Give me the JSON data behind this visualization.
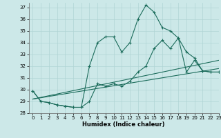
{
  "xlabel": "Humidex (Indice chaleur)",
  "bg_color": "#cce8e8",
  "line_color": "#1a6b5a",
  "grid_color": "#b0d4d4",
  "xlim": [
    -0.5,
    23
  ],
  "ylim": [
    28,
    37.4
  ],
  "yticks": [
    28,
    29,
    30,
    31,
    32,
    33,
    34,
    35,
    36,
    37
  ],
  "xticks": [
    0,
    1,
    2,
    3,
    4,
    5,
    6,
    7,
    8,
    9,
    10,
    11,
    12,
    13,
    14,
    15,
    16,
    17,
    18,
    19,
    20,
    21,
    22,
    23
  ],
  "line1_x": [
    0,
    1,
    2,
    3,
    4,
    5,
    6,
    7,
    8,
    9,
    10,
    11,
    12,
    13,
    14,
    15,
    16,
    17,
    18,
    19,
    20,
    21,
    22,
    23
  ],
  "line1_y": [
    29.9,
    29.0,
    28.9,
    28.7,
    28.6,
    28.5,
    28.5,
    29.0,
    30.5,
    30.3,
    30.5,
    30.3,
    30.7,
    31.5,
    32.0,
    33.5,
    34.2,
    33.5,
    34.4,
    33.2,
    32.7,
    31.6,
    31.5,
    31.5
  ],
  "line2_x": [
    0,
    1,
    2,
    3,
    4,
    5,
    6,
    7,
    8,
    9,
    10,
    11,
    12,
    13,
    14,
    15,
    16,
    17,
    18,
    19,
    20,
    21,
    22,
    23
  ],
  "line2_y": [
    29.9,
    29.0,
    28.9,
    28.7,
    28.6,
    28.5,
    28.5,
    32.0,
    34.0,
    34.5,
    34.5,
    33.2,
    34.0,
    36.0,
    37.2,
    36.6,
    35.3,
    35.0,
    34.4,
    31.5,
    32.5,
    31.6,
    31.5,
    31.5
  ],
  "line3_x": [
    0,
    23
  ],
  "line3_y": [
    29.2,
    31.8
  ],
  "line4_x": [
    0,
    23
  ],
  "line4_y": [
    29.2,
    32.5
  ]
}
